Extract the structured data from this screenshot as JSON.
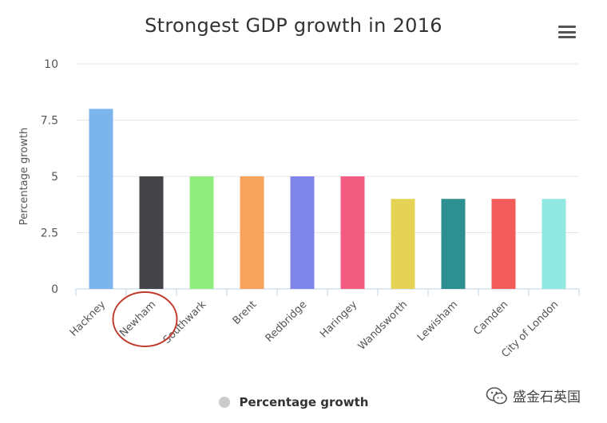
{
  "menu": {
    "icon": "hamburger-menu-icon"
  },
  "chart_data": {
    "type": "bar",
    "title": "Strongest GDP growth in 2016",
    "ylabel": "Percentage growth",
    "xlabel": "",
    "ylim": [
      0,
      10
    ],
    "yticks": [
      0,
      2.5,
      5,
      7.5,
      10
    ],
    "ytick_labels": [
      "0",
      "2.5",
      "5",
      "7.5",
      "10"
    ],
    "grid": true,
    "categories": [
      "Hackney",
      "Newham",
      "Southwark",
      "Brent",
      "Redbridge",
      "Haringey",
      "Wandsworth",
      "Lewisham",
      "Camden",
      "City of London"
    ],
    "values": [
      8,
      5,
      5,
      5,
      5,
      5,
      4,
      4,
      4,
      4
    ],
    "colors": [
      "#7cb5ec",
      "#434348",
      "#90ed7d",
      "#f7a35c",
      "#8085e9",
      "#f15c80",
      "#e4d354",
      "#2b908f",
      "#f45b5b",
      "#91e8e1"
    ],
    "legend": {
      "label": "Percentage growth",
      "position": "bottom-center",
      "swatch_color": "#cccccc"
    },
    "annotation": {
      "type": "circle",
      "category": "Newham",
      "color": "#c0392b"
    }
  },
  "watermark": {
    "icon": "wechat-icon",
    "text": "盛金石英国"
  }
}
